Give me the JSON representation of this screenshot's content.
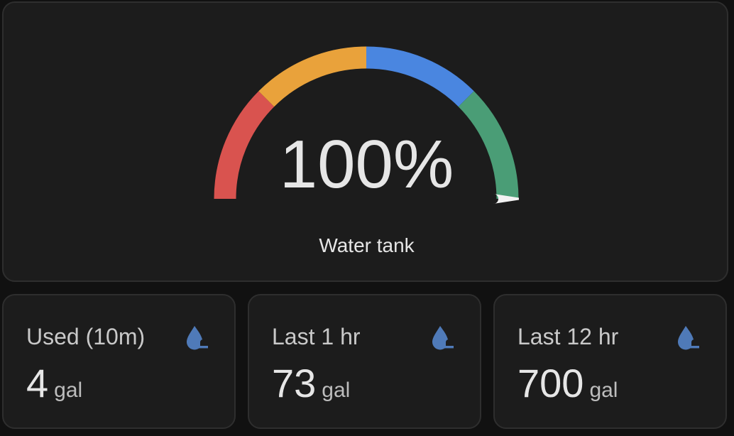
{
  "gauge": {
    "value_text": "100%",
    "value_fraction": 1.0,
    "label": "Water tank",
    "segment_colors": [
      "#d9534f",
      "#e9a23b",
      "#4a86e0",
      "#4a9d76"
    ],
    "needle_color": "#f2f2f2"
  },
  "stats": [
    {
      "title": "Used (10m)",
      "value": "4",
      "unit": "gal",
      "icon": "water-minus-icon"
    },
    {
      "title": "Last 1 hr",
      "value": "73",
      "unit": "gal",
      "icon": "water-minus-icon"
    },
    {
      "title": "Last 12 hr",
      "value": "700",
      "unit": "gal",
      "icon": "water-minus-icon"
    }
  ],
  "colors": {
    "background": "#111111",
    "card": "#1c1c1c",
    "icon": "#4f7ab8"
  }
}
